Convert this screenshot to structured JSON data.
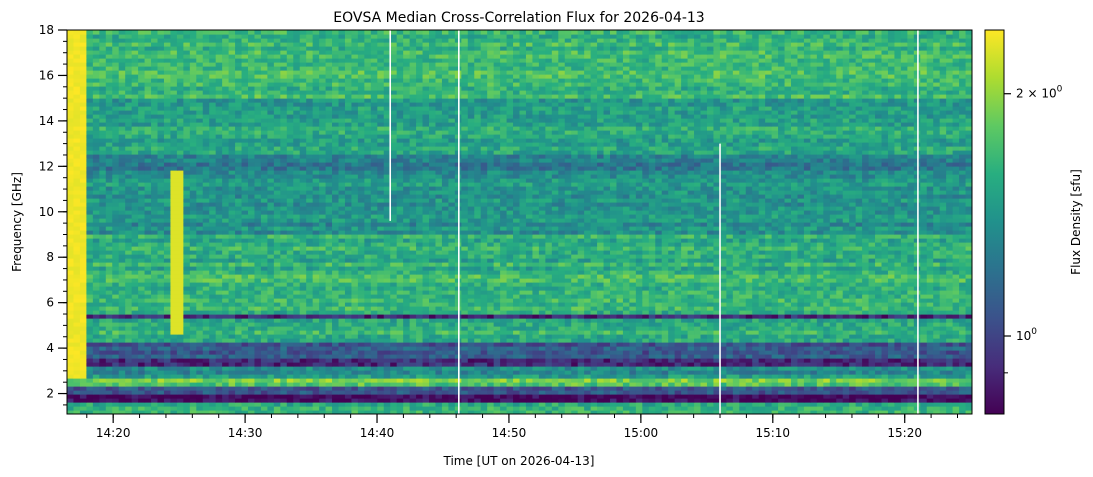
{
  "chart_data": {
    "type": "heatmap",
    "title": "EOVSA Median Cross-Correlation Flux for 2026-04-13",
    "xlabel": "Time [UT on 2026-04-13]",
    "ylabel": "Frequency [GHz]",
    "x_range_minutes": [
      16.5,
      85.1
    ],
    "x_origin_label": "14:00 UT",
    "x_ticks": [
      {
        "value": 20,
        "label": "14:20"
      },
      {
        "value": 30,
        "label": "14:30"
      },
      {
        "value": 40,
        "label": "14:40"
      },
      {
        "value": 50,
        "label": "14:50"
      },
      {
        "value": 60,
        "label": "15:00"
      },
      {
        "value": 70,
        "label": "15:10"
      },
      {
        "value": 80,
        "label": "15:20"
      }
    ],
    "x_minor_tick_step_minutes": 2,
    "ylim": [
      1.1,
      18.0
    ],
    "y_ticks": [
      2,
      4,
      6,
      8,
      10,
      12,
      14,
      16,
      18
    ],
    "y_minor_tick_step": 0.5,
    "colormap": "viridis",
    "colorbar": {
      "label": "Flux Density [sfu]",
      "scale": "log",
      "range": [
        0.8,
        2.4
      ],
      "ticks": [
        {
          "value": 2,
          "label": "2 × 10⁰",
          "base": "2 × 10",
          "exponent": "0"
        },
        {
          "value": 1,
          "label": "10⁰",
          "base": "10",
          "exponent": "0"
        }
      ],
      "minor_ticks": [
        0.9
      ]
    },
    "background_level": 0.55,
    "bright_onset_end_minute": 17.6,
    "features": [
      {
        "name": "burst",
        "time_minute": 24.7,
        "freq_range": [
          4.5,
          11.8
        ],
        "level": 0.95
      },
      {
        "name": "data-gap",
        "time_minute": 41.0,
        "freq_range": [
          9.6,
          18.0
        ]
      },
      {
        "name": "data-gap",
        "time_minute": 46.2,
        "freq_range": [
          1.1,
          18.0
        ]
      },
      {
        "name": "data-gap",
        "time_minute": 66.0,
        "freq_range": [
          1.1,
          13.0
        ]
      },
      {
        "name": "data-gap",
        "time_minute": 81.0,
        "freq_range": [
          1.1,
          18.0
        ]
      }
    ],
    "band_levels": [
      {
        "freq_range": [
          1.1,
          1.6
        ],
        "level": 0.62
      },
      {
        "freq_range": [
          1.6,
          2.0
        ],
        "level": 0.05
      },
      {
        "freq_range": [
          2.0,
          2.35
        ],
        "level": 0.25
      },
      {
        "freq_range": [
          2.35,
          2.6
        ],
        "level": 0.75
      },
      {
        "freq_range": [
          2.6,
          2.75
        ],
        "level": 0.08
      },
      {
        "freq_range": [
          2.75,
          3.3
        ],
        "level": 0.5
      },
      {
        "freq_range": [
          3.3,
          3.6
        ],
        "level": 0.12
      },
      {
        "freq_range": [
          3.6,
          4.2
        ],
        "level": 0.3
      },
      {
        "freq_range": [
          4.2,
          5.3
        ],
        "level": 0.62
      },
      {
        "freq_range": [
          5.3,
          5.45
        ],
        "level": 0.05
      },
      {
        "freq_range": [
          5.45,
          7.2
        ],
        "level": 0.66
      },
      {
        "freq_range": [
          7.2,
          9.0
        ],
        "level": 0.62
      },
      {
        "freq_range": [
          9.0,
          11.5
        ],
        "level": 0.5
      },
      {
        "freq_range": [
          11.5,
          12.6
        ],
        "level": 0.44
      },
      {
        "freq_range": [
          12.6,
          15.0
        ],
        "level": 0.58
      },
      {
        "freq_range": [
          15.0,
          18.0
        ],
        "level": 0.66
      }
    ]
  }
}
